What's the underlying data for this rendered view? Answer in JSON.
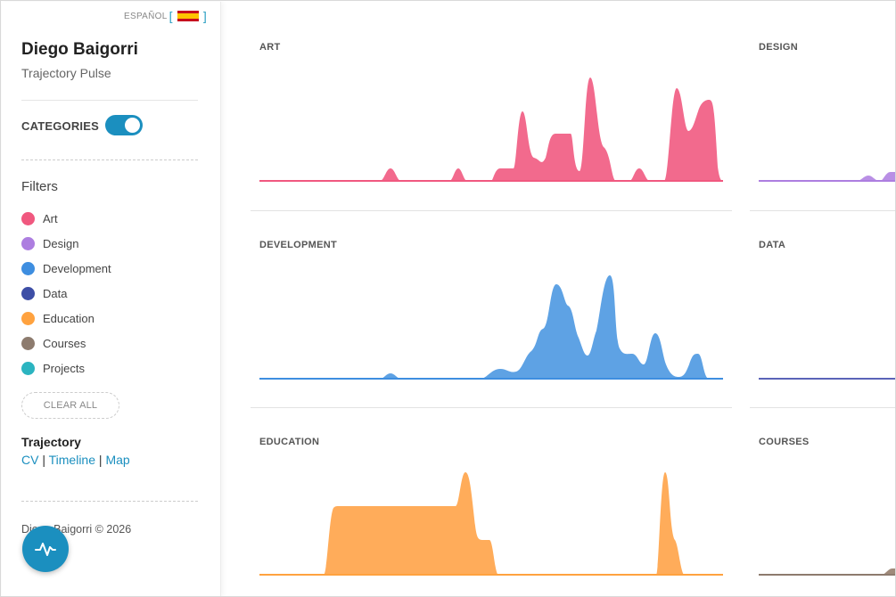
{
  "language": {
    "label": "ESPAÑOL",
    "flag": "spain-flag"
  },
  "profile": {
    "name": "Diego Baigorri",
    "subtitle": "Trajectory Pulse"
  },
  "categories_toggle": {
    "label": "CATEGORIES",
    "on": true
  },
  "filters": {
    "title": "Filters",
    "items": [
      {
        "label": "Art",
        "color": "#f0587f"
      },
      {
        "label": "Design",
        "color": "#ad7ee0"
      },
      {
        "label": "Development",
        "color": "#3e8ee0"
      },
      {
        "label": "Data",
        "color": "#3d4ea6"
      },
      {
        "label": "Education",
        "color": "#ffa23f"
      },
      {
        "label": "Courses",
        "color": "#8d7b6e"
      },
      {
        "label": "Projects",
        "color": "#2bb4c0"
      }
    ],
    "clear_label": "CLEAR ALL"
  },
  "trajectory": {
    "title": "Trajectory",
    "links": [
      "CV",
      "Timeline",
      "Map"
    ],
    "separator": "|"
  },
  "footer": {
    "copyright": "Diego Baigorri © 2026"
  },
  "fab_icon": "pulse-icon",
  "panels": [
    {
      "title": "ART",
      "color": "#f0587f",
      "fill": "#f26a8d"
    },
    {
      "title": "DESIGN",
      "color": "#ad7ee0",
      "fill": "#b98fe5"
    },
    {
      "title": "DEVELOPMENT",
      "color": "#3e8ee0",
      "fill": "#5ea2e4"
    },
    {
      "title": "DATA",
      "color": "#5a63b8",
      "fill": "#5a63b8"
    },
    {
      "title": "EDUCATION",
      "color": "#ffa23f",
      "fill": "#ffac5a"
    },
    {
      "title": "COURSES",
      "color": "#8d7b6e",
      "fill": "#a08a7a"
    }
  ]
}
